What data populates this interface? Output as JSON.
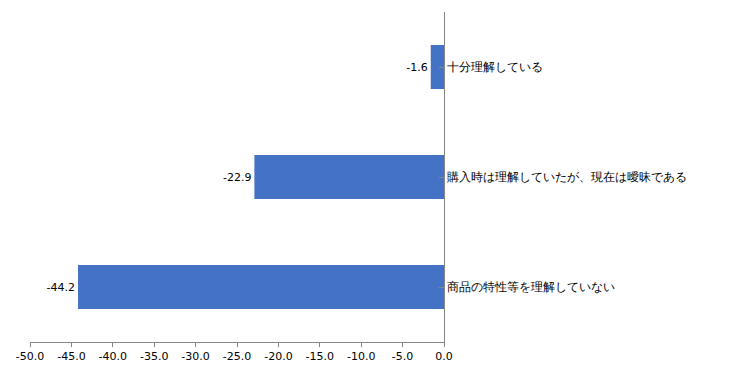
{
  "chart_data": {
    "type": "bar",
    "orientation": "horizontal",
    "categories": [
      "十分理解している",
      "購入時は理解していたが、現在は曖昧である",
      "商品の特性等を理解していない"
    ],
    "values": [
      -1.6,
      -22.9,
      -44.2
    ],
    "color": "#4472c4",
    "data_labels": true,
    "grid": false,
    "xlim": [
      -50,
      0
    ],
    "xticks": [
      {
        "value": -50,
        "label": "-50.0"
      },
      {
        "value": -45,
        "label": "-45.0"
      },
      {
        "value": -40,
        "label": "-40.0"
      },
      {
        "value": -35,
        "label": "-35.0"
      },
      {
        "value": -30,
        "label": "-30.0"
      },
      {
        "value": -25,
        "label": "-25.0"
      },
      {
        "value": -20,
        "label": "-20.0"
      },
      {
        "value": -15,
        "label": "-15.0"
      },
      {
        "value": -10,
        "label": "-10.0"
      },
      {
        "value": -5,
        "label": "-5.0"
      },
      {
        "value": 0,
        "label": "0.0"
      }
    ]
  }
}
